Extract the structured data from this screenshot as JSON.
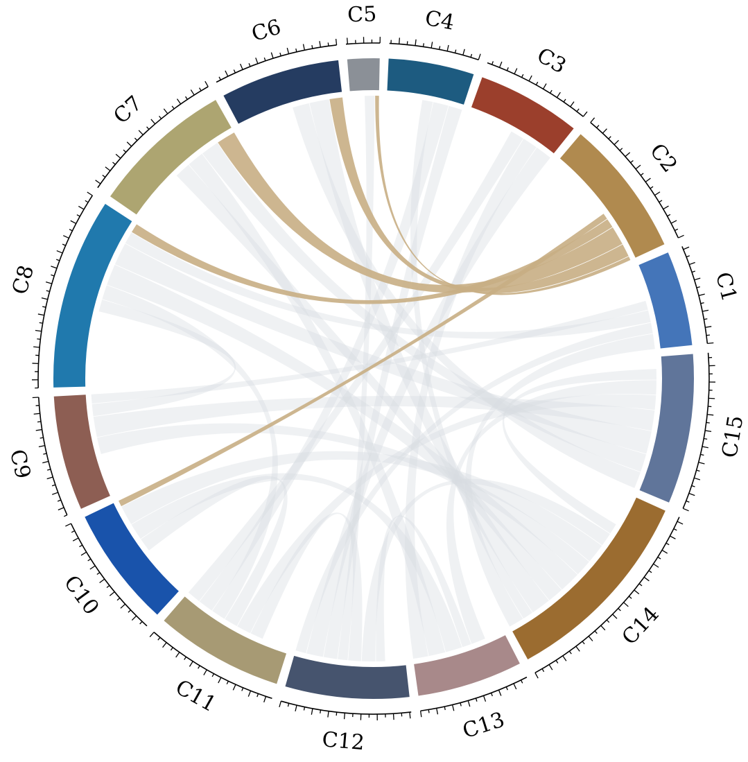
{
  "chart_data": {
    "type": "chord",
    "title": "",
    "segments": [
      {
        "name": "C1",
        "size": 6.2,
        "color": "#4475b9"
      },
      {
        "name": "C2",
        "size": 9.0,
        "color": "#b08a4f"
      },
      {
        "name": "C3",
        "size": 6.8,
        "color": "#9b3f2c"
      },
      {
        "name": "C4",
        "size": 5.6,
        "color": "#1d5b80"
      },
      {
        "name": "C5",
        "size": 2.1,
        "color": "#8b9097"
      },
      {
        "name": "C6",
        "size": 7.8,
        "color": "#253c61"
      },
      {
        "name": "C7",
        "size": 9.3,
        "color": "#ada571"
      },
      {
        "name": "C8",
        "size": 12.5,
        "color": "#2079ad"
      },
      {
        "name": "C9",
        "size": 7.5,
        "color": "#8d5e53"
      },
      {
        "name": "C10",
        "size": 7.9,
        "color": "#1953ab"
      },
      {
        "name": "C11",
        "size": 8.4,
        "color": "#a79a74"
      },
      {
        "name": "C12",
        "size": 8.1,
        "color": "#46546e"
      },
      {
        "name": "C13",
        "size": 6.9,
        "color": "#a8898a"
      },
      {
        "name": "C14",
        "size": 13.3,
        "color": "#9b6c30"
      },
      {
        "name": "C15",
        "size": 9.8,
        "color": "#60759a"
      }
    ],
    "highlight_color": "#c8ae84",
    "base_link_color": "#d8dbe0",
    "links": [
      {
        "source": "C2",
        "target": "C5",
        "value": 0.5,
        "highlighted": true
      },
      {
        "source": "C2",
        "target": "C6",
        "value": 1.7,
        "highlighted": true
      },
      {
        "source": "C2",
        "target": "C7",
        "value": 2.5,
        "highlighted": true
      },
      {
        "source": "C2",
        "target": "C8",
        "value": 1.2,
        "highlighted": true
      },
      {
        "source": "C2",
        "target": "C10",
        "value": 0.8,
        "highlighted": true
      },
      {
        "source": "C1",
        "target": "C14",
        "value": 2.0,
        "highlighted": false
      },
      {
        "source": "C1",
        "target": "C12",
        "value": 1.4,
        "highlighted": false
      },
      {
        "source": "C1",
        "target": "C8",
        "value": 1.6,
        "highlighted": false
      },
      {
        "source": "C1",
        "target": "C9",
        "value": 1.2,
        "highlighted": false
      },
      {
        "source": "C3",
        "target": "C12",
        "value": 2.2,
        "highlighted": false
      },
      {
        "source": "C3",
        "target": "C13",
        "value": 2.0,
        "highlighted": false
      },
      {
        "source": "C3",
        "target": "C11",
        "value": 1.8,
        "highlighted": false
      },
      {
        "source": "C4",
        "target": "C12",
        "value": 1.8,
        "highlighted": false
      },
      {
        "source": "C4",
        "target": "C11",
        "value": 2.0,
        "highlighted": false
      },
      {
        "source": "C4",
        "target": "C14",
        "value": 1.4,
        "highlighted": false
      },
      {
        "source": "C5",
        "target": "C12",
        "value": 1.3,
        "highlighted": false
      },
      {
        "source": "C6",
        "target": "C14",
        "value": 2.6,
        "highlighted": false
      },
      {
        "source": "C6",
        "target": "C15",
        "value": 2.2,
        "highlighted": false
      },
      {
        "source": "C7",
        "target": "C15",
        "value": 2.4,
        "highlighted": false
      },
      {
        "source": "C7",
        "target": "C13",
        "value": 2.2,
        "highlighted": false
      },
      {
        "source": "C7",
        "target": "C14",
        "value": 2.1,
        "highlighted": false
      },
      {
        "source": "C8",
        "target": "C15",
        "value": 3.0,
        "highlighted": false
      },
      {
        "source": "C8",
        "target": "C14",
        "value": 2.8,
        "highlighted": false
      },
      {
        "source": "C8",
        "target": "C11",
        "value": 1.9,
        "highlighted": false
      },
      {
        "source": "C8",
        "target": "C9",
        "value": 1.6,
        "highlighted": false
      },
      {
        "source": "C9",
        "target": "C15",
        "value": 2.7,
        "highlighted": false
      },
      {
        "source": "C9",
        "target": "C14",
        "value": 2.2,
        "highlighted": false
      },
      {
        "source": "C10",
        "target": "C14",
        "value": 2.6,
        "highlighted": false
      },
      {
        "source": "C10",
        "target": "C13",
        "value": 2.2,
        "highlighted": false
      },
      {
        "source": "C10",
        "target": "C11",
        "value": 1.8,
        "highlighted": false
      },
      {
        "source": "C11",
        "target": "C15",
        "value": 1.9,
        "highlighted": false
      },
      {
        "source": "C11",
        "target": "C12",
        "value": 1.7,
        "highlighted": false
      },
      {
        "source": "C12",
        "target": "C14",
        "value": 1.8,
        "highlighted": false
      },
      {
        "source": "C12",
        "target": "C13",
        "value": 1.2,
        "highlighted": false
      },
      {
        "source": "C13",
        "target": "C15",
        "value": 1.9,
        "highlighted": false
      },
      {
        "source": "C14",
        "target": "C15",
        "value": 1.4,
        "highlighted": false
      }
    ]
  }
}
